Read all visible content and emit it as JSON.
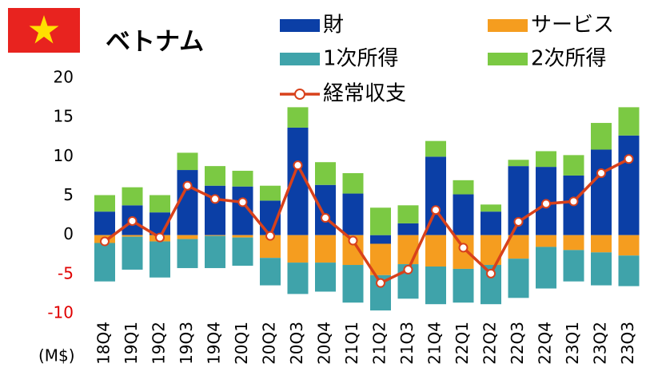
{
  "chart_data": {
    "type": "stacked_bar_line",
    "title": "ベトナム",
    "y_axis_label": "(M$)",
    "categories": [
      "18Q4",
      "19Q1",
      "19Q2",
      "19Q3",
      "19Q4",
      "20Q1",
      "20Q2",
      "20Q3",
      "20Q4",
      "21Q1",
      "21Q2",
      "21Q3",
      "21Q4",
      "22Q1",
      "22Q2",
      "22Q3",
      "22Q4",
      "23Q1",
      "23Q2",
      "23Q3"
    ],
    "series": [
      {
        "name": "財",
        "color": "#0b3fa6",
        "values": [
          3.0,
          3.8,
          2.9,
          8.3,
          6.3,
          6.2,
          4.4,
          13.7,
          6.4,
          5.3,
          -1.1,
          1.5,
          10.0,
          5.2,
          3.0,
          8.8,
          8.7,
          7.6,
          10.9,
          12.7
        ]
      },
      {
        "name": "サービス",
        "color": "#f59d1f",
        "values": [
          -1.0,
          -0.2,
          -0.8,
          -0.5,
          -0.1,
          -0.3,
          -2.9,
          -3.5,
          -3.5,
          -3.8,
          -4.0,
          -3.7,
          -4.0,
          -4.3,
          -3.8,
          -3.0,
          -1.5,
          -1.9,
          -2.2,
          -2.6
        ]
      },
      {
        "name": "1次所得",
        "color": "#3fa3aa",
        "values": [
          -4.9,
          -4.2,
          -4.6,
          -3.7,
          -4.1,
          -3.6,
          -3.5,
          -4.0,
          -3.7,
          -4.8,
          -4.5,
          -4.4,
          -4.8,
          -4.3,
          -5.0,
          -5.0,
          -5.3,
          -4.0,
          -4.2,
          -3.9
        ]
      },
      {
        "name": "2次所得",
        "color": "#7bc943",
        "values": [
          2.1,
          2.3,
          2.2,
          2.2,
          2.5,
          2.0,
          1.9,
          2.6,
          2.9,
          2.6,
          3.5,
          2.3,
          2.0,
          1.8,
          0.9,
          0.8,
          2.0,
          2.6,
          3.4,
          3.6
        ]
      },
      {
        "name": "経常収支",
        "color": "#d8411b",
        "type": "line",
        "values": [
          -0.8,
          1.8,
          -0.3,
          6.3,
          4.6,
          4.2,
          -0.1,
          8.9,
          2.2,
          -0.7,
          -6.1,
          -4.4,
          3.2,
          -1.6,
          -4.9,
          1.7,
          4.0,
          4.3,
          7.9,
          9.7
        ]
      }
    ],
    "ylim": [
      -10,
      20
    ],
    "yticks": [
      -10,
      -5,
      0,
      5,
      10,
      15,
      20
    ],
    "negative_tick_color": "#e00000"
  }
}
